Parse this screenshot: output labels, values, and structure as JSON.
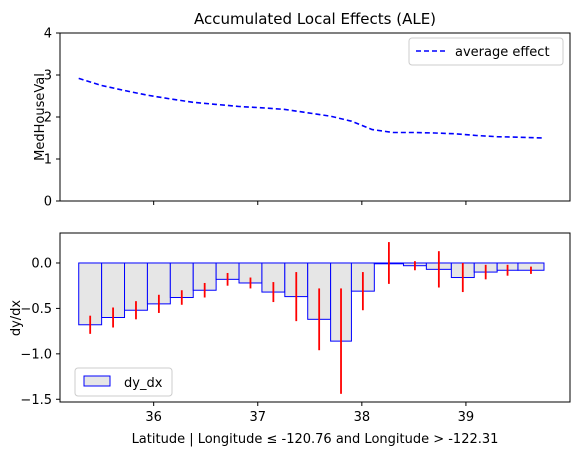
{
  "figure_title": "Accumulated Local Effects (ALE)",
  "xlabel": "Latitude | Longitude ≤ -120.76 and Longitude > -122.31",
  "x_ticks": [
    36,
    37,
    38,
    39
  ],
  "colors": {
    "line": "#0000ff",
    "bar_edge": "#0000ff",
    "bar_fill": "#e6e6e6",
    "error": "#ff0000",
    "axis": "#000000"
  },
  "chart_data": [
    {
      "type": "line",
      "title": "Accumulated Local Effects (ALE)",
      "ylabel": "MedHouseVal",
      "xlim": [
        35.1,
        40.0
      ],
      "ylim": [
        0,
        4
      ],
      "yticks": [
        0,
        1,
        2,
        3,
        4
      ],
      "legend": {
        "placement": "top-right",
        "entries": [
          "average effect"
        ]
      },
      "series": [
        {
          "name": "average effect",
          "style": "dashed",
          "x": [
            35.28,
            35.5,
            35.72,
            35.94,
            36.16,
            36.38,
            36.6,
            36.82,
            37.04,
            37.26,
            37.48,
            37.7,
            37.9,
            38.1,
            38.3,
            38.5,
            38.7,
            38.9,
            39.1,
            39.3,
            39.5,
            39.75
          ],
          "values": [
            2.92,
            2.75,
            2.63,
            2.52,
            2.43,
            2.35,
            2.3,
            2.25,
            2.22,
            2.18,
            2.1,
            2.02,
            1.9,
            1.7,
            1.63,
            1.63,
            1.62,
            1.6,
            1.56,
            1.53,
            1.52,
            1.5
          ]
        }
      ]
    },
    {
      "type": "bar",
      "ylabel": "dy/dx",
      "xlim": [
        35.1,
        40.0
      ],
      "ylim": [
        -1.53,
        0.33
      ],
      "yticks": [
        0.0,
        -0.5,
        -1.0,
        -1.5
      ],
      "ytick_labels": [
        "0.0",
        "−0.5",
        "−1.0",
        "−1.5"
      ],
      "legend": {
        "placement": "bottom-left",
        "entries": [
          "dy_dx"
        ]
      },
      "bins": [
        [
          35.28,
          35.5,
          -0.68,
          0.1
        ],
        [
          35.5,
          35.72,
          -0.6,
          0.11
        ],
        [
          35.72,
          35.94,
          -0.52,
          0.1
        ],
        [
          35.94,
          36.16,
          -0.45,
          0.1
        ],
        [
          36.16,
          36.38,
          -0.38,
          0.08
        ],
        [
          36.38,
          36.6,
          -0.3,
          0.08
        ],
        [
          36.6,
          36.82,
          -0.18,
          0.07
        ],
        [
          36.82,
          37.04,
          -0.22,
          0.06
        ],
        [
          37.04,
          37.26,
          -0.32,
          0.11
        ],
        [
          37.26,
          37.48,
          -0.37,
          0.27
        ],
        [
          37.48,
          37.7,
          -0.62,
          0.34
        ],
        [
          37.7,
          37.9,
          -0.86,
          0.58
        ],
        [
          37.9,
          38.12,
          -0.31,
          0.21
        ],
        [
          38.12,
          38.4,
          0.0,
          0.23
        ],
        [
          38.4,
          38.62,
          -0.03,
          0.05
        ],
        [
          38.62,
          38.86,
          -0.07,
          0.2
        ],
        [
          38.86,
          39.08,
          -0.16,
          0.16
        ],
        [
          39.08,
          39.3,
          -0.1,
          0.08
        ],
        [
          39.3,
          39.5,
          -0.08,
          0.06
        ],
        [
          39.5,
          39.75,
          -0.08,
          0.04
        ]
      ],
      "bin_fields": [
        "x_start",
        "x_end",
        "dy_dx",
        "error"
      ]
    }
  ]
}
